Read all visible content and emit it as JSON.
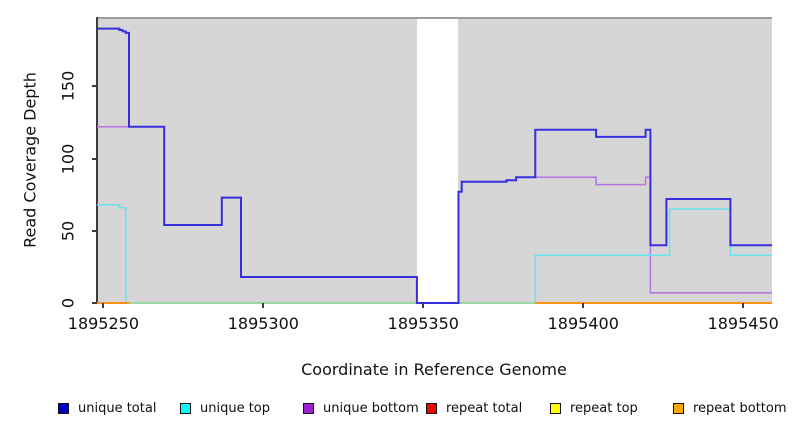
{
  "chart_data": {
    "type": "line",
    "subtype": "step-coverage-plot",
    "title": "",
    "xlabel": "Coordinate in Reference Genome",
    "ylabel": "Read Coverage Depth",
    "xlim": [
      1895248,
      1895459
    ],
    "ylim": [
      0,
      198
    ],
    "x_ticks": [
      1895250,
      1895300,
      1895350,
      1895400,
      1895450
    ],
    "y_ticks": [
      0,
      50,
      100,
      150
    ],
    "grid": "off",
    "plot_background": "#d6d6d6",
    "no_data_gap": {
      "x_start": 1895348,
      "x_end": 1895361,
      "color": "#ffffff"
    },
    "series": [
      {
        "name": "unique total",
        "line_color": "#382ee0",
        "line_width": 2,
        "segments": [
          [
            1895248,
            1895255,
            190
          ],
          [
            1895255,
            1895256,
            189
          ],
          [
            1895256,
            1895257,
            188
          ],
          [
            1895257,
            1895258,
            187
          ],
          [
            1895258,
            1895269,
            122
          ],
          [
            1895269,
            1895287,
            54
          ],
          [
            1895287,
            1895293,
            73
          ],
          [
            1895293,
            1895348,
            18
          ],
          [
            1895348,
            1895361,
            0
          ],
          [
            1895361,
            1895362,
            77
          ],
          [
            1895362,
            1895376,
            84
          ],
          [
            1895376,
            1895379,
            85
          ],
          [
            1895379,
            1895385,
            87
          ],
          [
            1895385,
            1895404,
            120
          ],
          [
            1895404,
            1895419.5,
            115
          ],
          [
            1895419.5,
            1895421,
            120
          ],
          [
            1895421,
            1895426,
            40
          ],
          [
            1895426,
            1895446,
            72
          ],
          [
            1895446,
            1895459,
            40
          ]
        ]
      },
      {
        "name": "unique top",
        "line_color": "#66e4ee",
        "line_width": 1.5,
        "segments": [
          [
            1895248,
            1895255,
            68
          ],
          [
            1895255,
            1895257,
            66
          ],
          [
            1895257,
            1895385,
            0
          ],
          [
            1895385,
            1895427,
            33
          ],
          [
            1895427,
            1895446,
            65
          ],
          [
            1895446,
            1895459,
            33
          ]
        ]
      },
      {
        "name": "unique bottom",
        "line_color": "#b573e0",
        "line_width": 1.5,
        "segments": [
          [
            1895248,
            1895269,
            122
          ],
          [
            1895269,
            1895287,
            54
          ],
          [
            1895287,
            1895293,
            73
          ],
          [
            1895293,
            1895348,
            18
          ],
          [
            1895348,
            1895361,
            0
          ],
          [
            1895361,
            1895362,
            77
          ],
          [
            1895362,
            1895376,
            84
          ],
          [
            1895376,
            1895379,
            85
          ],
          [
            1895379,
            1895385,
            87
          ],
          [
            1895385,
            1895404,
            87
          ],
          [
            1895404,
            1895419.5,
            82
          ],
          [
            1895419.5,
            1895421,
            87
          ],
          [
            1895421,
            1895459,
            7
          ]
        ]
      },
      {
        "name": "repeat total",
        "line_color": "#ee1111",
        "line_width": 1.5,
        "segments": [
          [
            1895248,
            1895459,
            0
          ]
        ],
        "note": "constant 0 across range, hidden under baseline overplot"
      },
      {
        "name": "repeat top",
        "line_color": "#ffff00",
        "line_width": 1.5,
        "segments": [
          [
            1895248,
            1895459,
            0
          ]
        ],
        "note": "constant 0 across range, hidden under baseline overplot"
      },
      {
        "name": "repeat bottom",
        "line_color": "#ff9414",
        "line_width": 2,
        "segments": [
          [
            1895248,
            1895459,
            0
          ]
        ],
        "note": "constant 0 across range; visible as orange baseline outside the green blended section"
      }
    ],
    "baseline_visible_segments": [
      {
        "x_start": 1895248,
        "x_end": 1895258,
        "depth": 0,
        "color": "#ff9414"
      },
      {
        "x_start": 1895258,
        "x_end": 1895385,
        "depth": 0,
        "color": "#9dd6a5"
      },
      {
        "x_start": 1895385,
        "x_end": 1895459,
        "depth": 0,
        "color": "#ff9414"
      }
    ],
    "draw_order": [
      "unique bottom",
      "unique top",
      "baseline",
      "unique total"
    ],
    "legend": [
      {
        "label": "unique total",
        "color": "#0000cc"
      },
      {
        "label": "unique top",
        "color": "#00ffff"
      },
      {
        "label": "unique bottom",
        "color": "#9a20d0"
      },
      {
        "label": "repeat total",
        "color": "#f40000"
      },
      {
        "label": "repeat top",
        "color": "#ffff00"
      },
      {
        "label": "repeat bottom",
        "color": "#ffa500"
      }
    ],
    "legend_position": "bottom"
  }
}
